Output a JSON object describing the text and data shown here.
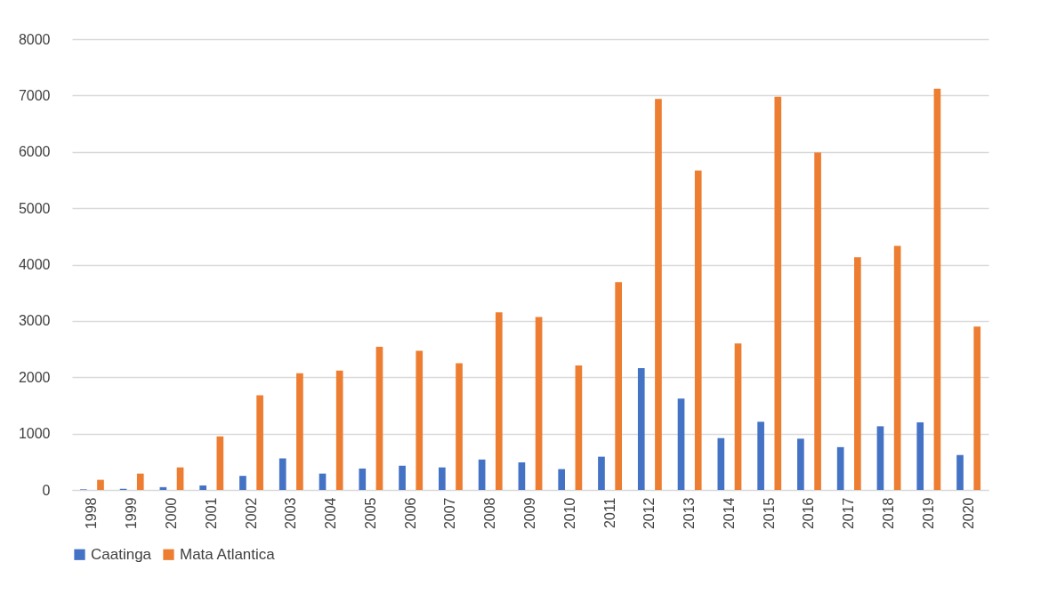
{
  "chart_data": {
    "type": "bar",
    "categories": [
      "1998",
      "1999",
      "2000",
      "2001",
      "2002",
      "2003",
      "2004",
      "2005",
      "2006",
      "2007",
      "2008",
      "2009",
      "2010",
      "2011",
      "2012",
      "2013",
      "2014",
      "2015",
      "2016",
      "2017",
      "2018",
      "2019",
      "2020"
    ],
    "series": [
      {
        "name": "Caatinga",
        "color": "#4472c4",
        "values": [
          10,
          20,
          50,
          80,
          250,
          560,
          290,
          380,
          430,
          400,
          540,
          490,
          370,
          590,
          2160,
          1620,
          920,
          1210,
          910,
          760,
          1130,
          1200,
          620
        ]
      },
      {
        "name": "Mata Atlantica",
        "color": "#ed7d31",
        "values": [
          180,
          290,
          400,
          950,
          1680,
          2070,
          2120,
          2540,
          2470,
          2250,
          3150,
          3070,
          2210,
          3690,
          6940,
          5670,
          2600,
          6980,
          5990,
          4130,
          4330,
          7120,
          2900
        ]
      }
    ],
    "ylim": [
      0,
      8000
    ],
    "yticks": [
      0,
      1000,
      2000,
      3000,
      4000,
      5000,
      6000,
      7000,
      8000
    ],
    "grid": "y",
    "legend": "bottom"
  }
}
